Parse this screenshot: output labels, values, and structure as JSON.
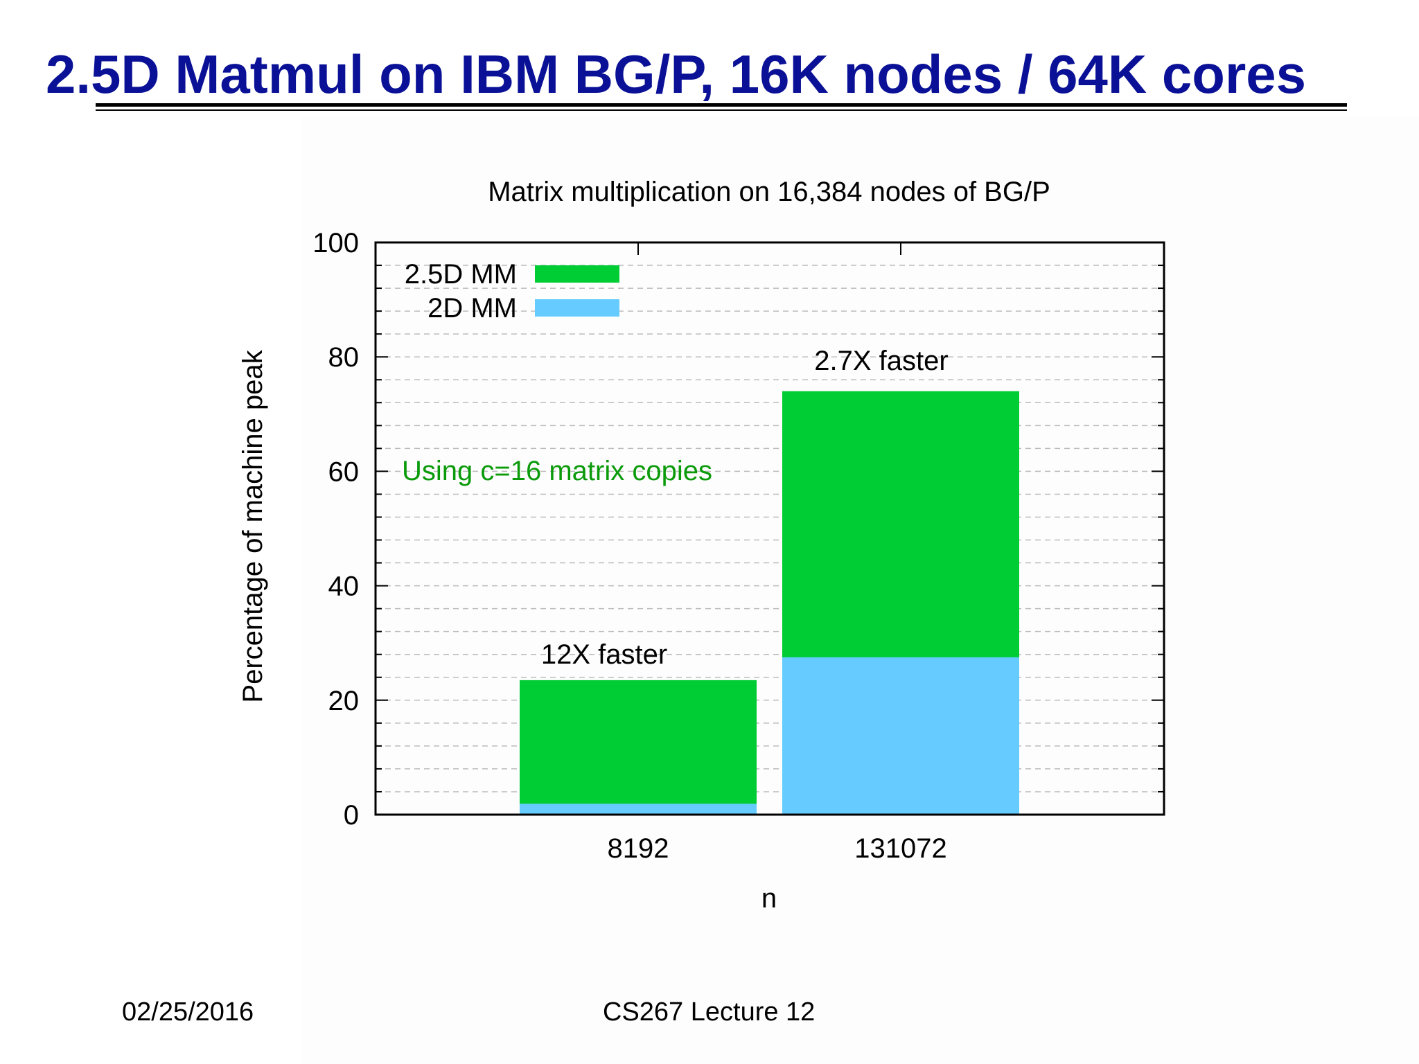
{
  "slide": {
    "title": "2.5D Matmul on IBM BG/P, 16K nodes / 64K cores",
    "footer_date": "02/25/2016",
    "footer_lecture": "CS267 Lecture 12"
  },
  "colors": {
    "title_text": "#0a1196",
    "series_2_5d": "#00cc33",
    "series_2d": "#66ccff",
    "annotation_note": "#0a9a0a",
    "grid": "#bbbbbb"
  },
  "chart_data": {
    "type": "bar",
    "stacked": true,
    "title": "Matrix multiplication on 16,384 nodes of BG/P",
    "xlabel": "n",
    "ylabel": "Percentage of machine peak",
    "ylim": [
      0,
      100
    ],
    "yticks": [
      "0",
      "20",
      "40",
      "60",
      "80",
      "100"
    ],
    "categories": [
      "8192",
      "131072"
    ],
    "grid": true,
    "legend_position": "top-left",
    "series": [
      {
        "name": "2.5D MM",
        "color": "#00cc33",
        "values": [
          23.5,
          74
        ]
      },
      {
        "name": "2D MM",
        "color": "#66ccff",
        "values": [
          1.9,
          27.5
        ]
      }
    ],
    "bar_annotations": [
      "12X faster",
      "2.7X faster"
    ],
    "note": "Using c=16 matrix copies"
  }
}
